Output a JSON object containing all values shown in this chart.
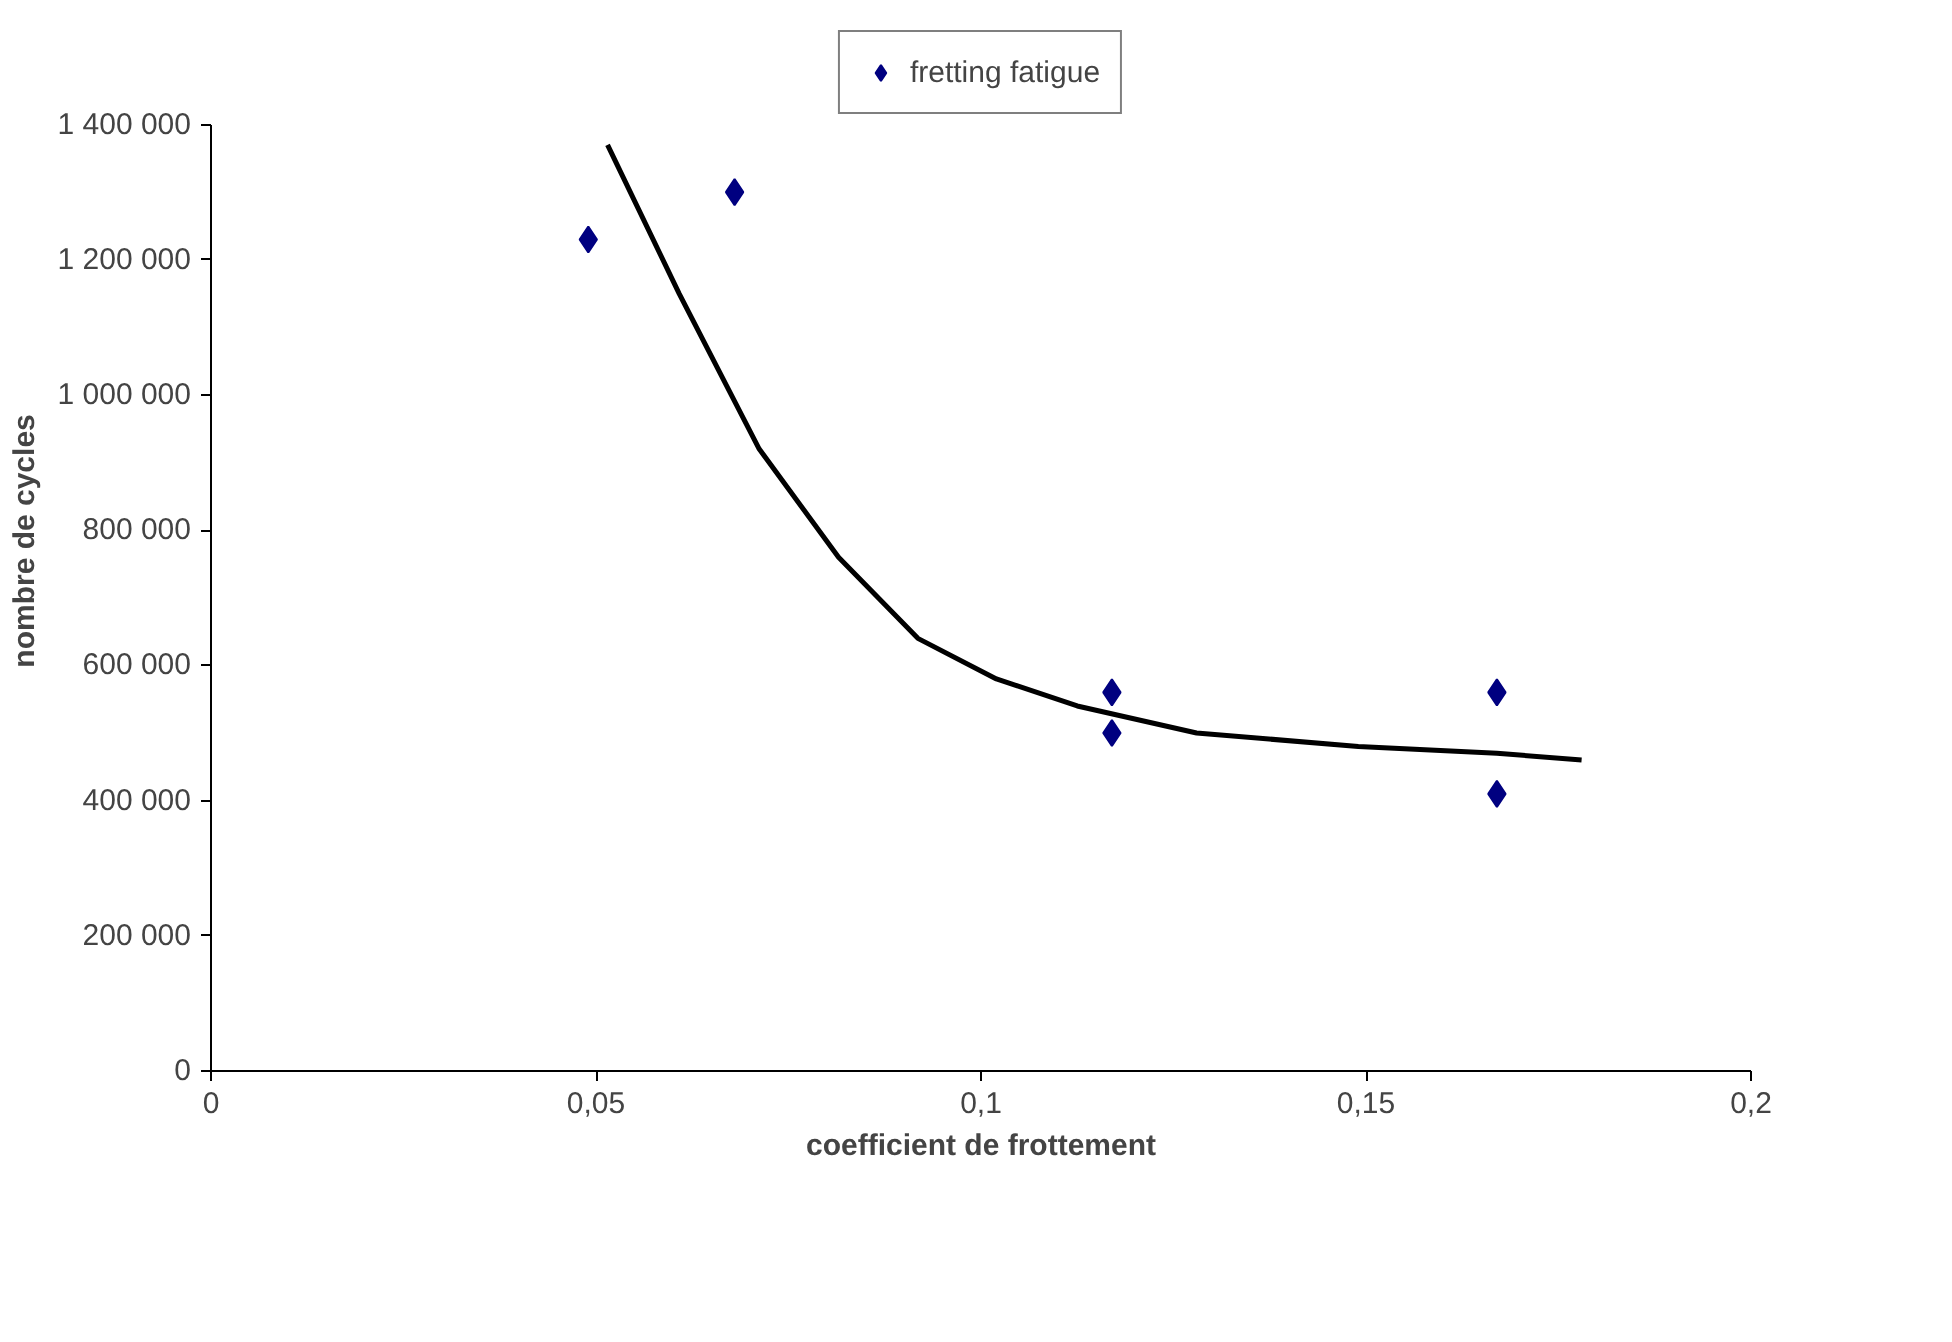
{
  "chart_data": {
    "type": "scatter",
    "xlabel": "coefficient de frottement",
    "ylabel": "nombre de cycles",
    "xlim": [
      0,
      0.2
    ],
    "ylim": [
      0,
      1400000
    ],
    "xticks": [
      0,
      {
        "value": 0.05,
        "label": "0,05"
      },
      {
        "value": 0.1,
        "label": "0,1"
      },
      {
        "value": 0.15,
        "label": "0,15"
      },
      {
        "value": 0.2,
        "label": "0,2"
      }
    ],
    "yticks": [
      0,
      {
        "value": 200000,
        "label": "200 000"
      },
      {
        "value": 400000,
        "label": "400 000"
      },
      {
        "value": 600000,
        "label": "600 000"
      },
      {
        "value": 800000,
        "label": "800 000"
      },
      {
        "value": 1000000,
        "label": "1 000 000"
      },
      {
        "value": 1200000,
        "label": "1 200 000"
      },
      {
        "value": 1400000,
        "label": "1 400 000"
      }
    ],
    "grid": false,
    "legend": "top",
    "series": [
      {
        "name": "fretting fatigue",
        "marker": "diamond",
        "color": "#000080",
        "x": [
          0.049,
          0.068,
          0.117,
          0.117,
          0.167,
          0.167
        ],
        "values": [
          1230000,
          1300000,
          560000,
          500000,
          560000,
          410000
        ]
      },
      {
        "type": "line",
        "color": "#000000",
        "line_style": "solid",
        "x": [
          0.0515,
          0.0608,
          0.0712,
          0.0815,
          0.0918,
          0.102,
          0.1125,
          0.128,
          0.149,
          0.167,
          0.178
        ],
        "values": [
          1370000,
          1150000,
          920000,
          760000,
          640000,
          580000,
          540000,
          500000,
          480000,
          470000,
          460000
        ]
      }
    ]
  }
}
